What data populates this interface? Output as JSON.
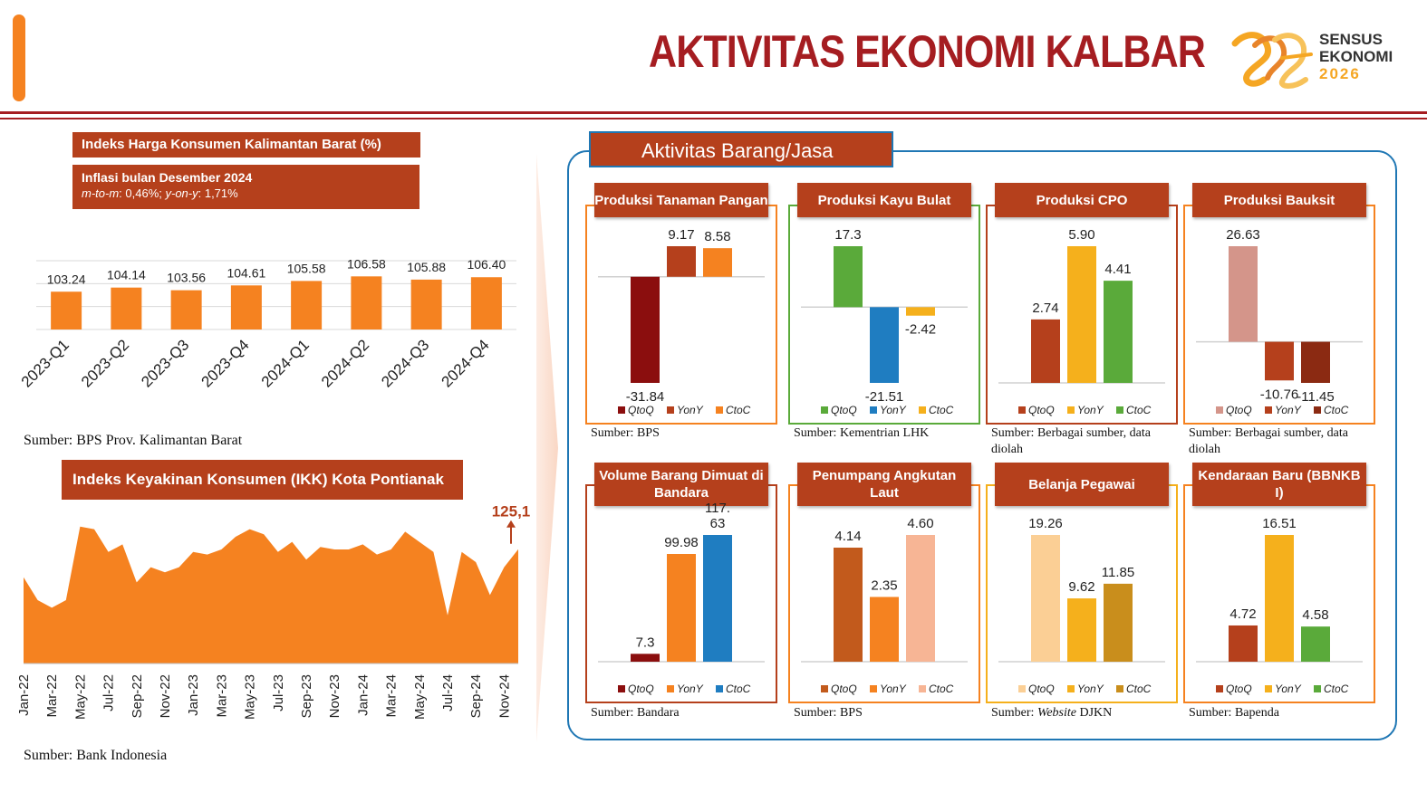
{
  "header": {
    "title": "AKTIVITAS EKONOMI KALBAR",
    "logo_line1": "SENSUS",
    "logo_line2": "EKONOMI",
    "logo_line3": "2026"
  },
  "colors": {
    "brand_red": "#a51d21",
    "banner": "#b5401c",
    "orange": "#f58220",
    "panel_blue": "#1f77b4"
  },
  "ihk": {
    "banner_title": "Indeks Harga Konsumen  Kalimantan Barat (%)",
    "inflasi_title": "Inflasi bulan Desember 2024",
    "inflasi_mtm_label": "m-to-m",
    "inflasi_mtm_value": ": 0,46%; ",
    "inflasi_yoy_label": "y-on-y",
    "inflasi_yoy_value": ": 1,71%",
    "source": "Sumber: BPS Prov. Kalimantan Barat"
  },
  "ikk": {
    "banner_title": "Indeks Keyakinan Konsumen (IKK) Kota Pontianak",
    "source": "Sumber: Bank Indonesia"
  },
  "right_panel": {
    "title": "Aktivitas Barang/Jasa"
  },
  "chart_data": [
    {
      "id": "ihk",
      "type": "bar",
      "categories": [
        "2023-Q1",
        "2023-Q2",
        "2023-Q3",
        "2023-Q4",
        "2024-Q1",
        "2024-Q2",
        "2024-Q3",
        "2024-Q4"
      ],
      "values": [
        103.24,
        104.14,
        103.56,
        104.61,
        105.58,
        106.58,
        105.88,
        106.4
      ],
      "value_labels": [
        "103.24",
        "104.14",
        "103.56",
        "104.61",
        "105.58",
        "106.58",
        "105.88",
        "106.40"
      ],
      "ylim": [
        95,
        110
      ],
      "grid": true,
      "color": "#f58220"
    },
    {
      "id": "ikk",
      "type": "area",
      "x_tick_labels": [
        "Jan-22",
        "Mar-22",
        "May-22",
        "Jul-22",
        "Sep-22",
        "Nov-22",
        "Jan-23",
        "Mar-23",
        "May-23",
        "Jul-23",
        "Sep-23",
        "Nov-23",
        "Jan-24",
        "Mar-24",
        "May-24",
        "Jul-24",
        "Sep-24",
        "Nov-24"
      ],
      "values": [
        114,
        105,
        102,
        105,
        134,
        133,
        124,
        127,
        112,
        118,
        116,
        118,
        124,
        123,
        125,
        130,
        133,
        131,
        124,
        128,
        121,
        126,
        125,
        125,
        127,
        123,
        125,
        132,
        128,
        124,
        99,
        124,
        120,
        107,
        118,
        125.1
      ],
      "ylim": [
        80,
        140
      ],
      "last_label": "125,1",
      "color": "#f58220"
    },
    {
      "id": "tanaman-pangan",
      "title": "Produksi Tanaman Pangan",
      "type": "bar",
      "categories": [
        "QtoQ",
        "YonY",
        "CtoC"
      ],
      "values": [
        -31.84,
        9.17,
        8.58
      ],
      "value_labels": [
        "-31.84",
        "9.17",
        "8.58"
      ],
      "colors": [
        "#8b0e0e",
        "#b5401c",
        "#f58220"
      ],
      "border": "#f58220",
      "source": "Sumber: BPS",
      "source_italic": ""
    },
    {
      "id": "kayu-bulat",
      "title": "Produksi Kayu Bulat",
      "type": "bar",
      "categories": [
        "QtoQ",
        "YonY",
        "CtoC"
      ],
      "values": [
        17.3,
        -21.51,
        -2.42
      ],
      "value_labels": [
        "17.3",
        "-21.51",
        "-2.42"
      ],
      "colors": [
        "#5aaa3a",
        "#1f7dc1",
        "#f5b01c"
      ],
      "border": "#5aaa3a",
      "source": "Sumber: Kementrian LHK",
      "source_italic": ""
    },
    {
      "id": "cpo",
      "title": "Produksi CPO",
      "type": "bar",
      "categories": [
        "QtoQ",
        "YonY",
        "CtoC"
      ],
      "values": [
        2.74,
        5.9,
        4.41
      ],
      "value_labels": [
        "2.74",
        "5.90",
        "4.41"
      ],
      "colors": [
        "#b5401c",
        "#f5b01c",
        "#5aaa3a"
      ],
      "border": "#b5401c",
      "source": "Sumber: Berbagai sumber, data diolah",
      "source_italic": ""
    },
    {
      "id": "bauksit",
      "title": "Produksi Bauksit",
      "type": "bar",
      "categories": [
        "QtoQ",
        "YonY",
        "CtoC"
      ],
      "values": [
        26.63,
        -10.76,
        -11.45
      ],
      "value_labels": [
        "26.63",
        "-10.76",
        "-11.45"
      ],
      "colors": [
        "#d4958a",
        "#b5401c",
        "#8b2a12"
      ],
      "border": "#f58220",
      "source": "Sumber: Berbagai sumber, data diolah",
      "source_italic": ""
    },
    {
      "id": "bandara",
      "title": "Volume Barang Dimuat di Bandara",
      "type": "bar",
      "categories": [
        "QtoQ",
        "YonY",
        "CtoC"
      ],
      "values": [
        7.3,
        99.98,
        117.63
      ],
      "value_labels": [
        "7.3",
        "99.98",
        "117.\n63"
      ],
      "colors": [
        "#8b0e0e",
        "#f58220",
        "#1f7dc1"
      ],
      "border": "#b5401c",
      "source": "Sumber:  Bandara",
      "source_italic": ""
    },
    {
      "id": "angkutan-laut",
      "title": "Penumpang Angkutan Laut",
      "type": "bar",
      "categories": [
        "QtoQ",
        "YonY",
        "CtoC"
      ],
      "values": [
        4.14,
        2.35,
        4.6
      ],
      "value_labels": [
        "4.14",
        "2.35",
        "4.60"
      ],
      "colors": [
        "#c25a1c",
        "#f58220",
        "#f7b595"
      ],
      "border": "#f58220",
      "source": "Sumber: BPS",
      "source_italic": ""
    },
    {
      "id": "belanja-pegawai",
      "title": "Belanja Pegawai",
      "type": "bar",
      "categories": [
        "QtoQ",
        "YonY",
        "CtoC"
      ],
      "values": [
        19.26,
        9.62,
        11.85
      ],
      "value_labels": [
        "19.26",
        "9.62",
        "11.85"
      ],
      "colors": [
        "#fbcf95",
        "#f5b01c",
        "#c98e1c"
      ],
      "border": "#f5b01c",
      "source": "Sumber: ",
      "source_italic": "Website",
      "source_after": " DJKN"
    },
    {
      "id": "kendaraan-baru",
      "title": "Kendaraan Baru (BBNKB I)",
      "type": "bar",
      "categories": [
        "QtoQ",
        "YonY",
        "CtoC"
      ],
      "values": [
        4.72,
        16.51,
        4.58
      ],
      "value_labels": [
        "4.72",
        "16.51",
        "4.58"
      ],
      "colors": [
        "#b5401c",
        "#f5b01c",
        "#5aaa3a"
      ],
      "border": "#f58220",
      "source": "Sumber: Bapenda",
      "source_italic": ""
    }
  ]
}
